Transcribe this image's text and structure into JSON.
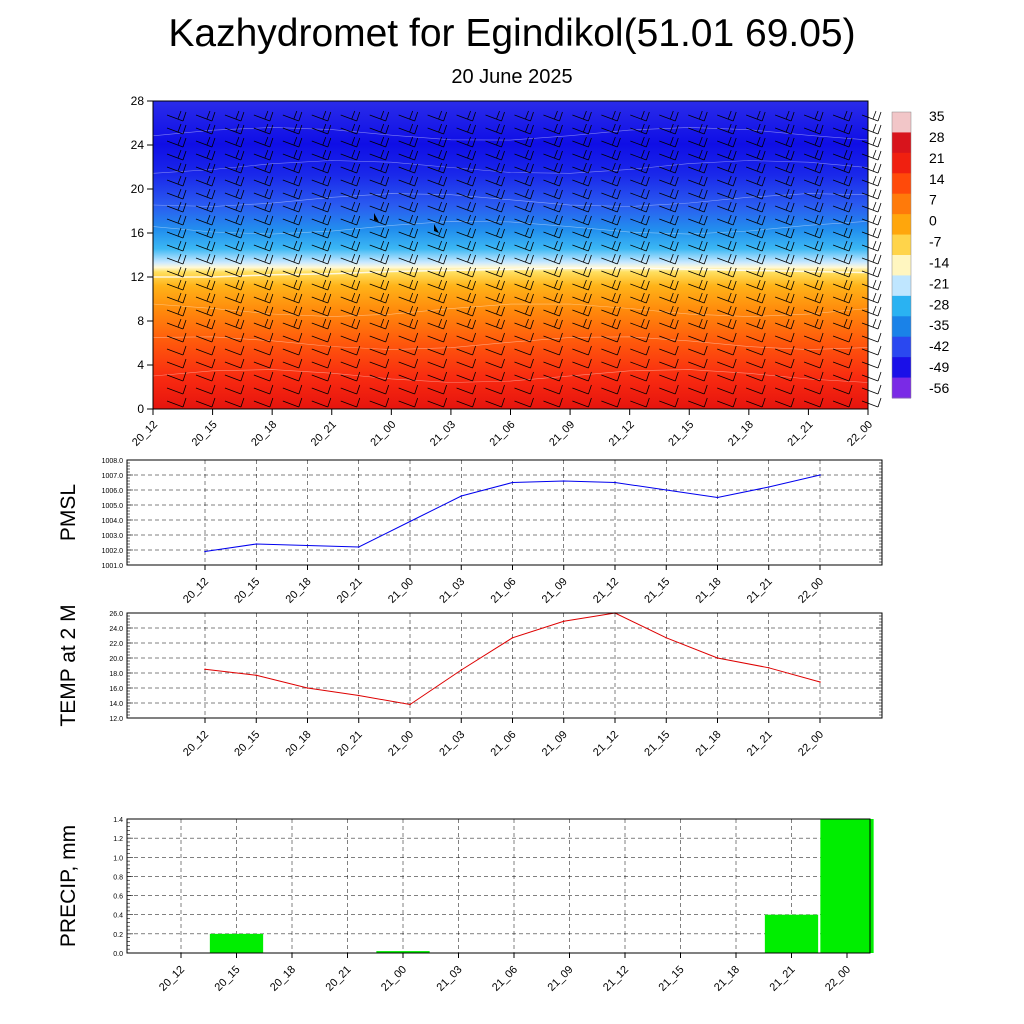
{
  "title": "Kazhydromet for Egindikol(51.01 69.05)",
  "subtitle": "20 June 2025",
  "time_labels": [
    "20_12",
    "20_15",
    "20_18",
    "20_21",
    "21_00",
    "21_03",
    "21_06",
    "21_09",
    "21_12",
    "21_15",
    "21_18",
    "21_21",
    "22_00"
  ],
  "chart_data": [
    {
      "type": "heatmap",
      "name": "temperature-cross-section",
      "x": [
        "20_12",
        "20_15",
        "20_18",
        "20_21",
        "21_00",
        "21_03",
        "21_06",
        "21_09",
        "21_12",
        "21_15",
        "21_18",
        "21_21",
        "22_00"
      ],
      "y_ticks": [
        0,
        4,
        8,
        12,
        16,
        20,
        24,
        28
      ],
      "ylim": [
        0,
        28
      ],
      "freezing_level": [
        12.0,
        12.0,
        12.2,
        12.3,
        12.5,
        12.6,
        12.7,
        12.8,
        12.8,
        12.7,
        12.6,
        12.5,
        12.4
      ],
      "colorbar_labels": [
        "35",
        "28",
        "21",
        "14",
        "7",
        "0",
        "-7",
        "-14",
        "-21",
        "-28",
        "-35",
        "-42",
        "-49",
        "-56"
      ],
      "colorbar_colors": [
        "#f2c6c8",
        "#d8141c",
        "#f02010",
        "#ff4a0a",
        "#ff7a0a",
        "#ffa60c",
        "#ffd44a",
        "#fff6c0",
        "#bfe6ff",
        "#2ab2f2",
        "#1a82e8",
        "#2a48f0",
        "#1a10e8",
        "#7a2ae6"
      ],
      "wind_barbs": true,
      "grid": false
    },
    {
      "type": "line",
      "ylabel": "PMSL",
      "categories": [
        "20_12",
        "20_15",
        "20_18",
        "20_21",
        "21_00",
        "21_03",
        "21_06",
        "21_09",
        "21_12",
        "21_15",
        "21_18",
        "21_21",
        "22_00"
      ],
      "values": [
        1001.9,
        1002.4,
        1002.3,
        1002.2,
        1003.9,
        1005.6,
        1006.5,
        1006.6,
        1006.5,
        1006.0,
        1005.5,
        1006.2,
        1007.0
      ],
      "ylim": [
        1001.0,
        1008.0
      ],
      "yticks": [
        "1001.0",
        "1002.0",
        "1003.0",
        "1004.0",
        "1005.0",
        "1006.0",
        "1007.0",
        "1008.0"
      ],
      "color": "#0000ee",
      "grid": true
    },
    {
      "type": "line",
      "ylabel": "TEMP at 2 M",
      "categories": [
        "20_12",
        "20_15",
        "20_18",
        "20_21",
        "21_00",
        "21_03",
        "21_06",
        "21_09",
        "21_12",
        "21_15",
        "21_18",
        "21_21",
        "22_00"
      ],
      "values": [
        18.5,
        17.7,
        16.0,
        15.0,
        13.8,
        18.4,
        22.7,
        24.9,
        26.0,
        22.7,
        20.0,
        18.7,
        16.8
      ],
      "ylim": [
        12.0,
        26.0
      ],
      "yticks": [
        "12.0",
        "14.0",
        "16.0",
        "18.0",
        "20.0",
        "22.0",
        "24.0",
        "26.0"
      ],
      "color": "#dd0000",
      "grid": true
    },
    {
      "type": "bar",
      "ylabel": "PRECIP, mm",
      "categories": [
        "20_12",
        "20_15",
        "20_18",
        "20_21",
        "21_00",
        "21_03",
        "21_06",
        "21_09",
        "21_12",
        "21_15",
        "21_18",
        "21_21",
        "22_00"
      ],
      "values": [
        0,
        0.2,
        0,
        0,
        0.02,
        0,
        0,
        0,
        0,
        0,
        0,
        0.4,
        1.4
      ],
      "ylim": [
        0,
        1.4
      ],
      "yticks": [
        "0.0",
        "0.2",
        "0.4",
        "0.6",
        "0.8",
        "1.0",
        "1.2",
        "1.4"
      ],
      "color": "#00ee00",
      "grid": true
    }
  ]
}
